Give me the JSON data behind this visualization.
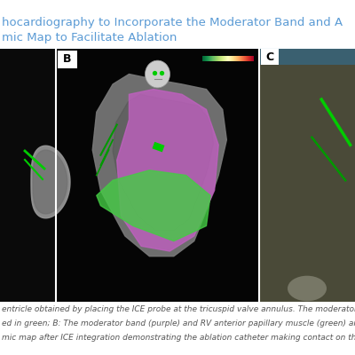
{
  "title_line1": "hocardiography to Incorporate the Moderator Band and A",
  "title_line2": "mic Map to Facilitate Ablation",
  "title_color": "#5b9bd5",
  "title_fontsize": 9.5,
  "bg_color": "#ffffff",
  "divider_color": "#5b9bd5",
  "caption_line1": "entricle obtained by placing the ICE probe at the tricuspid valve annulus. The moderator",
  "caption_line2": "ed in green; B: The moderator band (purple) and RV anterior papillary muscle (green) are",
  "caption_line3": "mic map after ICE integration demonstrating the ablation catheter making contact on the",
  "caption_color": "#555555",
  "caption_fontsize": 6.5,
  "panel_A_bg": "#0a0a0a",
  "panel_B_bg": "#050505",
  "panel_C_bg": "#4a4a38",
  "panel_C_bar_bg": "#3a5a6a",
  "heart_gray": "#888888",
  "heart_dark": "#555555",
  "purple_color": "#c060c0",
  "green_color": "#44cc44",
  "face_color": "#dddddd",
  "face_green": "#00cc00",
  "nav_color": "#777766"
}
